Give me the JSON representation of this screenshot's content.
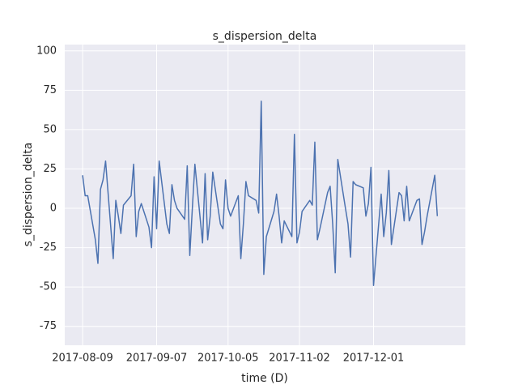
{
  "chart_data": {
    "type": "line",
    "title": "s_dispersion_delta",
    "xlabel": "time (D)",
    "ylabel": "s_dispersion_delta",
    "color": "#4c72b0",
    "grid": true,
    "x": [
      "2017-08-09",
      "2017-08-10",
      "2017-08-11",
      "2017-08-14",
      "2017-08-15",
      "2017-08-16",
      "2017-08-17",
      "2017-08-18",
      "2017-08-21",
      "2017-08-22",
      "2017-08-23",
      "2017-08-24",
      "2017-08-25",
      "2017-08-28",
      "2017-08-29",
      "2017-08-30",
      "2017-08-31",
      "2017-09-01",
      "2017-09-04",
      "2017-09-05",
      "2017-09-06",
      "2017-09-07",
      "2017-09-08",
      "2017-09-11",
      "2017-09-12",
      "2017-09-13",
      "2017-09-14",
      "2017-09-15",
      "2017-09-18",
      "2017-09-19",
      "2017-09-20",
      "2017-09-21",
      "2017-09-22",
      "2017-09-25",
      "2017-09-26",
      "2017-09-27",
      "2017-09-28",
      "2017-09-29",
      "2017-10-02",
      "2017-10-03",
      "2017-10-04",
      "2017-10-05",
      "2017-10-06",
      "2017-10-09",
      "2017-10-10",
      "2017-10-11",
      "2017-10-12",
      "2017-10-13",
      "2017-10-16",
      "2017-10-17",
      "2017-10-18",
      "2017-10-19",
      "2017-10-20",
      "2017-10-23",
      "2017-10-24",
      "2017-10-25",
      "2017-10-26",
      "2017-10-27",
      "2017-10-30",
      "2017-10-31",
      "2017-11-01",
      "2017-11-02",
      "2017-11-03",
      "2017-11-06",
      "2017-11-07",
      "2017-11-08",
      "2017-11-09",
      "2017-11-10",
      "2017-11-13",
      "2017-11-14",
      "2017-11-15",
      "2017-11-16",
      "2017-11-17",
      "2017-11-20",
      "2017-11-21",
      "2017-11-22",
      "2017-11-23",
      "2017-11-24",
      "2017-11-27",
      "2017-11-28",
      "2017-11-29",
      "2017-11-30",
      "2017-12-01",
      "2017-12-04",
      "2017-12-05",
      "2017-12-06",
      "2017-12-07",
      "2017-12-08",
      "2017-12-11",
      "2017-12-12",
      "2017-12-13",
      "2017-12-14",
      "2017-12-15",
      "2017-12-18",
      "2017-12-19",
      "2017-12-20",
      "2017-12-21",
      "2017-12-22",
      "2017-12-25",
      "2017-12-26"
    ],
    "values": [
      21,
      8,
      8,
      -20,
      -35,
      12,
      18,
      30,
      -32,
      5,
      -5,
      -16,
      2,
      8,
      28,
      -18,
      -2,
      3,
      -12,
      -25,
      20,
      -13,
      30,
      -10,
      -16,
      15,
      5,
      0,
      -7,
      27,
      -30,
      0,
      28,
      -22,
      22,
      -20,
      -5,
      23,
      -10,
      -13,
      18,
      0,
      -5,
      8,
      -32,
      -10,
      17,
      8,
      5,
      -3,
      68,
      -42,
      -18,
      -2,
      9,
      -5,
      -22,
      -8,
      -18,
      47,
      -22,
      -15,
      -2,
      5,
      2,
      42,
      -20,
      -13,
      10,
      14,
      -10,
      -41,
      31,
      0,
      -10,
      -31,
      17,
      15,
      13,
      -5,
      3,
      26,
      -49,
      9,
      -18,
      -3,
      24,
      -23,
      10,
      8,
      -8,
      14,
      -8,
      5,
      6,
      -23,
      -15,
      -5,
      21,
      -5
    ],
    "xlim": [
      "2017-08-02",
      "2018-01-06"
    ],
    "xticks": [
      "2017-08-09",
      "2017-09-07",
      "2017-10-05",
      "2017-11-02",
      "2017-12-01"
    ],
    "ylim": [
      -87,
      104
    ],
    "yticks": [
      -75,
      -50,
      -25,
      0,
      25,
      50,
      75,
      100
    ]
  }
}
